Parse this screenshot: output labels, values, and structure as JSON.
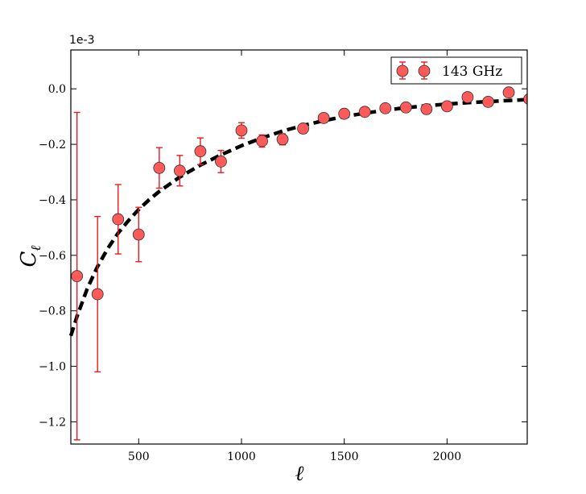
{
  "chart_data": {
    "type": "scatter",
    "xlabel": "ℓ",
    "ylabel_main": "C",
    "ylabel_sub": "ℓ",
    "offset_label": "1e-3",
    "xlim": [
      170,
      2390
    ],
    "ylim": [
      -1.28,
      0.14
    ],
    "x_ticks": [
      500,
      1000,
      1500,
      2000
    ],
    "y_ticks": [
      0.0,
      -0.2,
      -0.4,
      -0.6,
      -0.8,
      -1.0,
      -1.2
    ],
    "y_tick_labels": [
      "0.0",
      "−0.2",
      "−0.4",
      "−0.6",
      "−0.8",
      "−1.0",
      "−1.2"
    ],
    "grid": false,
    "legend_position": "top-right",
    "marker_color": "#ff5a5a",
    "errorbar_color": "#e8191c",
    "series": [
      {
        "name": "143 GHz",
        "x": [
          200,
          300,
          400,
          500,
          600,
          700,
          800,
          900,
          1000,
          1100,
          1200,
          1300,
          1400,
          1500,
          1600,
          1700,
          1800,
          1900,
          2000,
          2100,
          2200,
          2300,
          2400
        ],
        "y": [
          -0.675,
          -0.74,
          -0.47,
          -0.525,
          -0.285,
          -0.295,
          -0.225,
          -0.262,
          -0.15,
          -0.188,
          -0.182,
          -0.143,
          -0.105,
          -0.09,
          -0.083,
          -0.07,
          -0.067,
          -0.073,
          -0.063,
          -0.03,
          -0.047,
          -0.013,
          -0.037
        ],
        "yerr": [
          0.59,
          0.28,
          0.125,
          0.098,
          0.073,
          0.055,
          0.048,
          0.04,
          0.028,
          0.022,
          0.02,
          0.017,
          0.015,
          0.014,
          0.013,
          0.012,
          0.012,
          0.012,
          0.012,
          0.011,
          0.011,
          0.011,
          0.011
        ]
      }
    ],
    "model_curve": {
      "style": "dashed",
      "color": "#000000",
      "x": [
        170,
        200,
        250,
        300,
        350,
        400,
        450,
        500,
        550,
        600,
        700,
        800,
        900,
        1000,
        1100,
        1200,
        1300,
        1400,
        1500,
        1600,
        1700,
        1800,
        1900,
        2000,
        2100,
        2200,
        2300,
        2390
      ],
      "y": [
        -0.89,
        -0.82,
        -0.72,
        -0.64,
        -0.575,
        -0.52,
        -0.475,
        -0.435,
        -0.4,
        -0.37,
        -0.318,
        -0.275,
        -0.238,
        -0.205,
        -0.177,
        -0.152,
        -0.132,
        -0.115,
        -0.1,
        -0.088,
        -0.077,
        -0.068,
        -0.061,
        -0.055,
        -0.05,
        -0.046,
        -0.042,
        -0.039
      ]
    }
  }
}
